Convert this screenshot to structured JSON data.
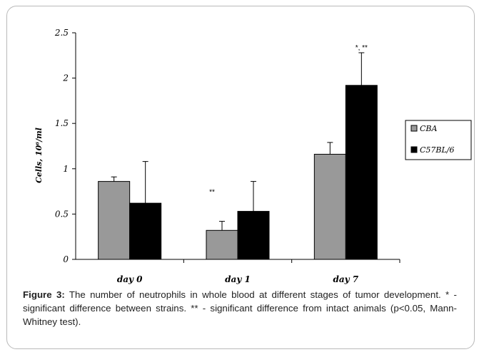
{
  "chart_data": {
    "type": "bar",
    "ylabel": "Cells, 10⁶/ml",
    "ylim": [
      0,
      2.5
    ],
    "yticks": [
      "0",
      "0.5",
      "1",
      "1.5",
      "2",
      "2.5"
    ],
    "ytick_values": [
      0,
      0.5,
      1,
      1.5,
      2,
      2.5
    ],
    "categories": [
      "day 0",
      "day 1",
      "day 7"
    ],
    "series": [
      {
        "name": "CBA",
        "values": [
          0.86,
          0.32,
          1.16
        ],
        "error": [
          0.05,
          0.1,
          0.13
        ],
        "color": "#999999"
      },
      {
        "name": "C57BL/6",
        "values": [
          0.62,
          0.53,
          1.92
        ],
        "error": [
          0.46,
          0.33,
          0.36
        ],
        "color": "#000000"
      }
    ],
    "annotations": [
      {
        "text": "**",
        "category": "day 1"
      },
      {
        "text": "*, **",
        "category": "day 7"
      }
    ],
    "legend": "right",
    "grid": false
  },
  "caption": {
    "label": "Figure 3:",
    "text": " The number of neutrophils in whole blood at different stages of tumor development. * - significant difference between strains. ** - significant difference from intact animals (p<0.05, Mann-Whitney test)."
  }
}
